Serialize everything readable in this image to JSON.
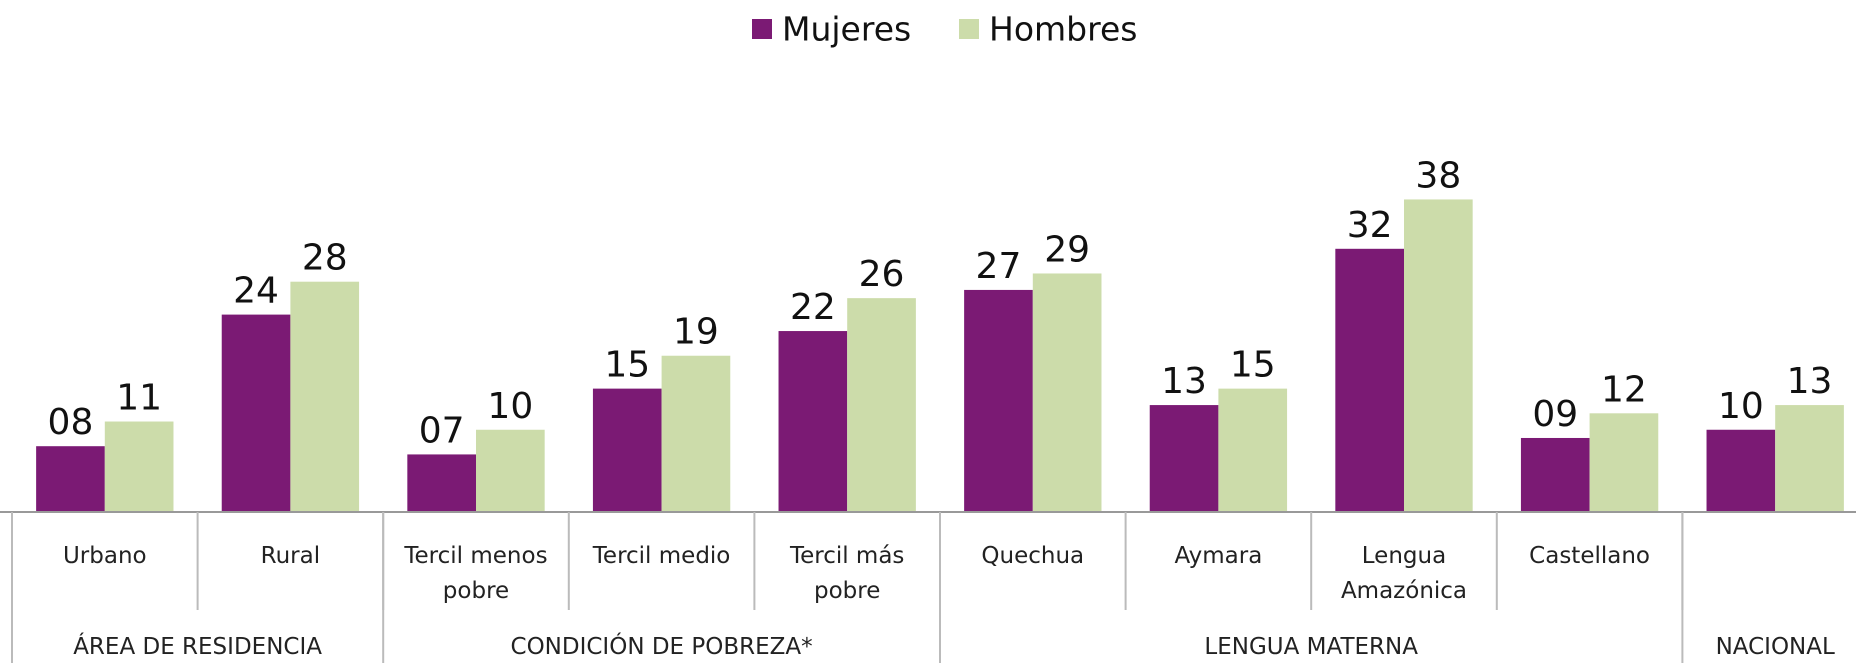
{
  "chart_data": {
    "type": "bar",
    "categories": [
      "Urbano",
      "Rural",
      "Tercil menos pobre",
      "Tercil medio",
      "Tercil más pobre",
      "Quechua",
      "Aymara",
      "Lengua Amazónica",
      "Castellano",
      null
    ],
    "groups": [
      {
        "label": "ÁREA DE RESIDENCIA",
        "count": 2
      },
      {
        "label": "CONDICIÓN DE POBREZA*",
        "count": 3
      },
      {
        "label": "LENGUA MATERNA",
        "count": 4
      },
      {
        "label": "NACIONAL",
        "count": 1
      }
    ],
    "series": [
      {
        "name": "Mujeres",
        "color": "#7b1a74",
        "values": [
          8,
          24,
          7,
          15,
          22,
          27,
          13,
          32,
          9,
          10
        ],
        "value_labels": [
          "08",
          "24",
          "07",
          "15",
          "22",
          "27",
          "13",
          "32",
          "09",
          "10"
        ]
      },
      {
        "name": "Hombres",
        "color": "#ccdcaa",
        "values": [
          11,
          28,
          10,
          19,
          26,
          29,
          15,
          38,
          12,
          13
        ]
      }
    ],
    "ylim": [
      0,
      40
    ],
    "legend": "top"
  }
}
